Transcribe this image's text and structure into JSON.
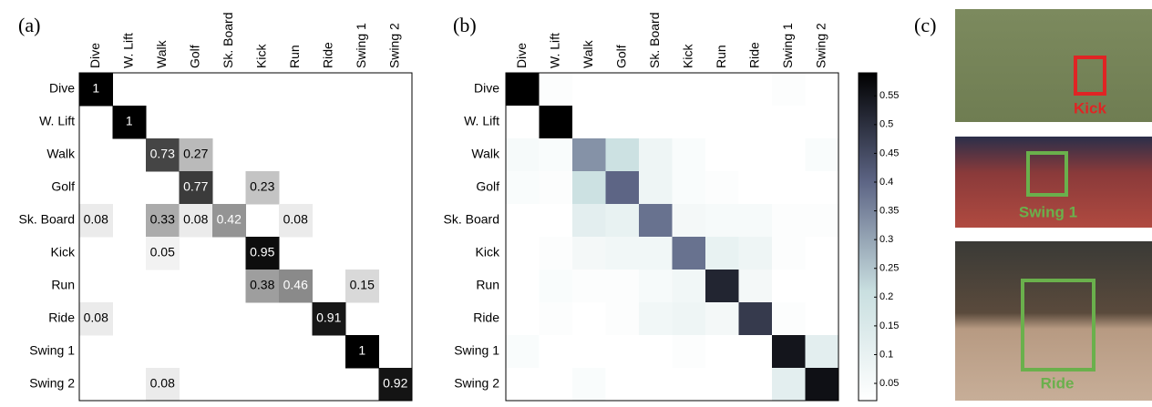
{
  "chart_data": [
    {
      "type": "heatmap",
      "title": "(a)",
      "categories": [
        "Dive",
        "W. Lift",
        "Walk",
        "Golf",
        "Sk. Board",
        "Kick",
        "Run",
        "Ride",
        "Swing 1",
        "Swing 2"
      ],
      "z": [
        [
          1,
          null,
          null,
          null,
          null,
          null,
          null,
          null,
          null,
          null
        ],
        [
          null,
          1,
          null,
          null,
          null,
          null,
          null,
          null,
          null,
          null
        ],
        [
          null,
          null,
          0.73,
          0.27,
          null,
          null,
          null,
          null,
          null,
          null
        ],
        [
          null,
          null,
          null,
          0.77,
          null,
          0.23,
          null,
          null,
          null,
          null
        ],
        [
          0.08,
          null,
          0.33,
          0.08,
          0.42,
          null,
          0.08,
          null,
          null,
          null
        ],
        [
          null,
          null,
          0.05,
          null,
          null,
          0.95,
          null,
          null,
          null,
          null
        ],
        [
          null,
          null,
          null,
          null,
          null,
          0.38,
          0.46,
          null,
          0.15,
          null
        ],
        [
          0.08,
          null,
          null,
          null,
          null,
          null,
          null,
          0.91,
          null,
          null
        ],
        [
          null,
          null,
          null,
          null,
          null,
          null,
          null,
          null,
          1,
          null
        ],
        [
          null,
          null,
          0.08,
          null,
          null,
          null,
          null,
          null,
          null,
          0.92
        ]
      ],
      "zlim": [
        0,
        1
      ],
      "colormap": [
        "#ffffff",
        "#000000"
      ],
      "show_values": true
    },
    {
      "type": "heatmap",
      "title": "(b)",
      "categories": [
        "Dive",
        "W. Lift",
        "Walk",
        "Golf",
        "Sk. Board",
        "Kick",
        "Run",
        "Ride",
        "Swing 1",
        "Swing 2"
      ],
      "z": [
        [
          0.6,
          0.03,
          0.02,
          0.02,
          0.01,
          0.0,
          0.0,
          0.0,
          0.03,
          0.01
        ],
        [
          0.02,
          0.6,
          0.02,
          0.01,
          0.01,
          0.01,
          0.02,
          0.01,
          0.01,
          0.01
        ],
        [
          0.05,
          0.04,
          0.33,
          0.2,
          0.08,
          0.04,
          0.02,
          0.02,
          0.02,
          0.04
        ],
        [
          0.04,
          0.03,
          0.2,
          0.4,
          0.08,
          0.04,
          0.03,
          0.02,
          0.01,
          0.02
        ],
        [
          0.02,
          0.02,
          0.12,
          0.1,
          0.38,
          0.06,
          0.05,
          0.05,
          0.03,
          0.03
        ],
        [
          0.01,
          0.03,
          0.06,
          0.07,
          0.07,
          0.38,
          0.1,
          0.08,
          0.03,
          0.02
        ],
        [
          0.01,
          0.04,
          0.03,
          0.03,
          0.05,
          0.07,
          0.52,
          0.06,
          0.02,
          0.01
        ],
        [
          0.02,
          0.03,
          0.02,
          0.03,
          0.07,
          0.08,
          0.06,
          0.48,
          0.03,
          0.02
        ],
        [
          0.04,
          0.01,
          0.01,
          0.01,
          0.01,
          0.03,
          0.02,
          0.02,
          0.55,
          0.12
        ],
        [
          0.02,
          0.02,
          0.04,
          0.01,
          0.01,
          0.01,
          0.01,
          0.01,
          0.12,
          0.56
        ]
      ],
      "zlim": [
        0.02,
        0.59
      ],
      "colormap": [
        "#ffffff",
        "#c9dfe0",
        "#5d6585",
        "#000000"
      ],
      "show_values": false,
      "colorbar_ticks": [
        0.05,
        0.1,
        0.15,
        0.2,
        0.25,
        0.3,
        0.35,
        0.4,
        0.45,
        0.5,
        0.55
      ]
    }
  ],
  "panel_c": {
    "title": "(c)",
    "images": [
      {
        "label": "Kick"
      },
      {
        "label": "Swing 1"
      },
      {
        "label": "Ride"
      }
    ]
  }
}
